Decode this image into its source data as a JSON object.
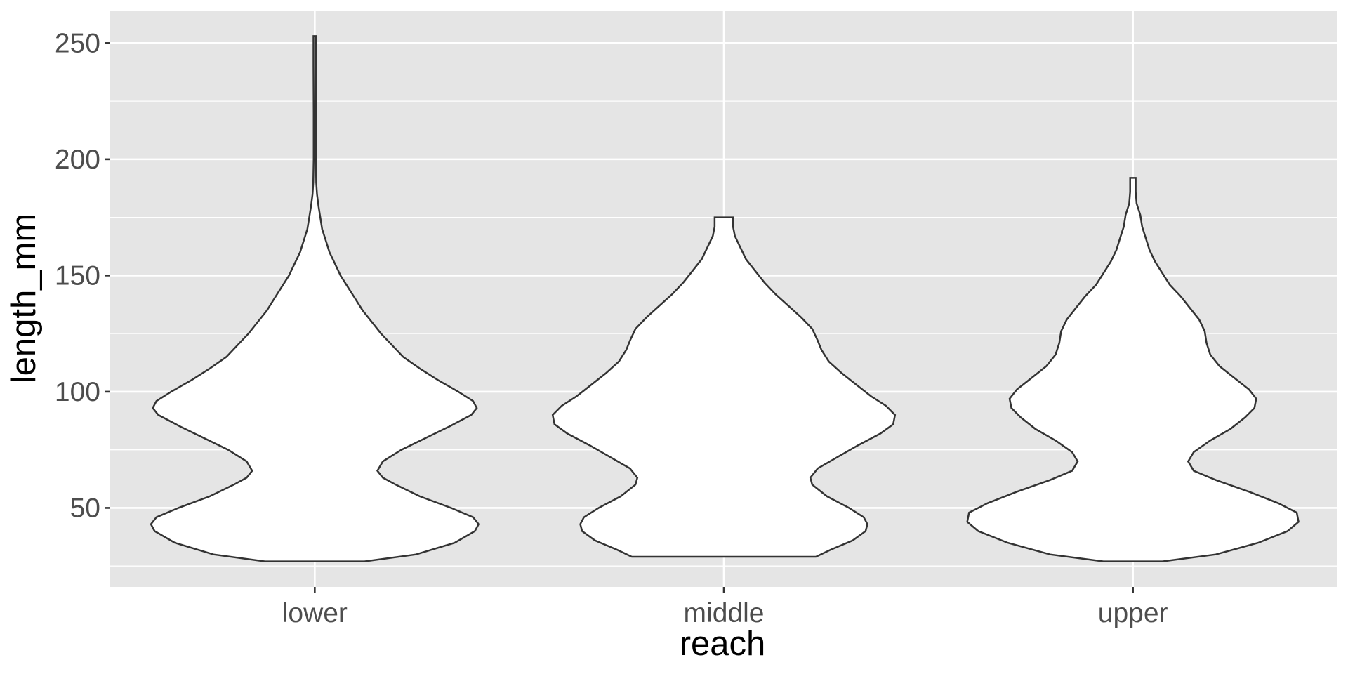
{
  "chart_data": {
    "type": "violin",
    "title": "",
    "xlabel": "reach",
    "ylabel": "length_mm",
    "categories": [
      "lower",
      "middle",
      "upper"
    ],
    "y_ticks": [
      50,
      100,
      150,
      200,
      250
    ],
    "y_tick_labels": [
      "50",
      "100",
      "150",
      "200",
      "250"
    ],
    "ylim": [
      16,
      264
    ],
    "grid": true,
    "panel_background": "#e5e5e5",
    "violin_fill": "#ffffff",
    "violin_stroke": "#333333",
    "violins": [
      {
        "category": "lower",
        "min": 27,
        "max": 253,
        "profile": [
          [
            27,
            0.27
          ],
          [
            30,
            0.55
          ],
          [
            35,
            0.76
          ],
          [
            40,
            0.87
          ],
          [
            43,
            0.89
          ],
          [
            46,
            0.86
          ],
          [
            50,
            0.74
          ],
          [
            55,
            0.57
          ],
          [
            60,
            0.44
          ],
          [
            63,
            0.37
          ],
          [
            66,
            0.34
          ],
          [
            70,
            0.37
          ],
          [
            75,
            0.47
          ],
          [
            80,
            0.6
          ],
          [
            85,
            0.73
          ],
          [
            90,
            0.85
          ],
          [
            93,
            0.88
          ],
          [
            96,
            0.86
          ],
          [
            100,
            0.78
          ],
          [
            105,
            0.67
          ],
          [
            110,
            0.57
          ],
          [
            115,
            0.48
          ],
          [
            120,
            0.42
          ],
          [
            125,
            0.36
          ],
          [
            130,
            0.31
          ],
          [
            135,
            0.26
          ],
          [
            140,
            0.22
          ],
          [
            145,
            0.18
          ],
          [
            150,
            0.14
          ],
          [
            155,
            0.11
          ],
          [
            160,
            0.08
          ],
          [
            165,
            0.06
          ],
          [
            170,
            0.04
          ],
          [
            175,
            0.03
          ],
          [
            180,
            0.02
          ],
          [
            185,
            0.012
          ],
          [
            190,
            0.008
          ],
          [
            200,
            0.006
          ],
          [
            220,
            0.006
          ],
          [
            240,
            0.007
          ],
          [
            253,
            0.007
          ]
        ]
      },
      {
        "category": "middle",
        "min": 29,
        "max": 175,
        "profile": [
          [
            29,
            0.5
          ],
          [
            32,
            0.58
          ],
          [
            36,
            0.7
          ],
          [
            40,
            0.77
          ],
          [
            43,
            0.78
          ],
          [
            46,
            0.76
          ],
          [
            50,
            0.68
          ],
          [
            55,
            0.56
          ],
          [
            60,
            0.48
          ],
          [
            63,
            0.47
          ],
          [
            67,
            0.51
          ],
          [
            72,
            0.62
          ],
          [
            77,
            0.73
          ],
          [
            82,
            0.85
          ],
          [
            86,
            0.92
          ],
          [
            90,
            0.93
          ],
          [
            94,
            0.88
          ],
          [
            98,
            0.8
          ],
          [
            103,
            0.72
          ],
          [
            108,
            0.64
          ],
          [
            113,
            0.57
          ],
          [
            118,
            0.53
          ],
          [
            122,
            0.51
          ],
          [
            127,
            0.48
          ],
          [
            132,
            0.42
          ],
          [
            137,
            0.35
          ],
          [
            142,
            0.28
          ],
          [
            147,
            0.22
          ],
          [
            152,
            0.17
          ],
          [
            157,
            0.12
          ],
          [
            162,
            0.09
          ],
          [
            167,
            0.06
          ],
          [
            171,
            0.05
          ],
          [
            175,
            0.05
          ]
        ]
      },
      {
        "category": "upper",
        "min": 27,
        "max": 192,
        "profile": [
          [
            27,
            0.16
          ],
          [
            30,
            0.45
          ],
          [
            35,
            0.68
          ],
          [
            40,
            0.84
          ],
          [
            44,
            0.9
          ],
          [
            48,
            0.89
          ],
          [
            52,
            0.79
          ],
          [
            57,
            0.63
          ],
          [
            62,
            0.45
          ],
          [
            66,
            0.33
          ],
          [
            70,
            0.3
          ],
          [
            74,
            0.33
          ],
          [
            79,
            0.42
          ],
          [
            84,
            0.53
          ],
          [
            89,
            0.61
          ],
          [
            93,
            0.66
          ],
          [
            97,
            0.67
          ],
          [
            101,
            0.63
          ],
          [
            106,
            0.55
          ],
          [
            111,
            0.47
          ],
          [
            116,
            0.42
          ],
          [
            121,
            0.4
          ],
          [
            126,
            0.39
          ],
          [
            131,
            0.36
          ],
          [
            136,
            0.31
          ],
          [
            141,
            0.26
          ],
          [
            146,
            0.2
          ],
          [
            151,
            0.16
          ],
          [
            156,
            0.12
          ],
          [
            161,
            0.09
          ],
          [
            166,
            0.07
          ],
          [
            171,
            0.05
          ],
          [
            176,
            0.04
          ],
          [
            181,
            0.02
          ],
          [
            186,
            0.015
          ],
          [
            190,
            0.015
          ],
          [
            192,
            0.015
          ]
        ]
      }
    ]
  }
}
